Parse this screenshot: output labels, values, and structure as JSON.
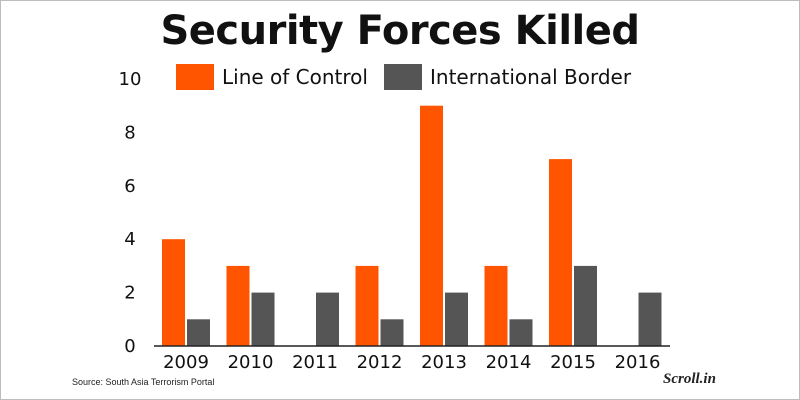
{
  "title": "Security Forces Killed",
  "source": "Source: South Asia Terrorism Portal",
  "logo": "Scroll.in",
  "colors": {
    "line_of_control": "#ff5500",
    "international_border": "#555555"
  },
  "chart_data": {
    "type": "bar",
    "title": "Security Forces Killed",
    "xlabel": "",
    "ylabel": "",
    "categories": [
      "2009",
      "2010",
      "2011",
      "2012",
      "2013",
      "2014",
      "2015",
      "2016"
    ],
    "series": [
      {
        "name": "Line of Control",
        "color": "#ff5500",
        "values": [
          4,
          3,
          0,
          3,
          9,
          3,
          7,
          0
        ]
      },
      {
        "name": "International Border",
        "color": "#555555",
        "values": [
          1,
          2,
          2,
          1,
          2,
          1,
          3,
          2
        ]
      }
    ],
    "ylim": [
      0,
      10
    ],
    "yticks": [
      0,
      2,
      4,
      6,
      8,
      10
    ],
    "legend": "top",
    "grid": false
  }
}
